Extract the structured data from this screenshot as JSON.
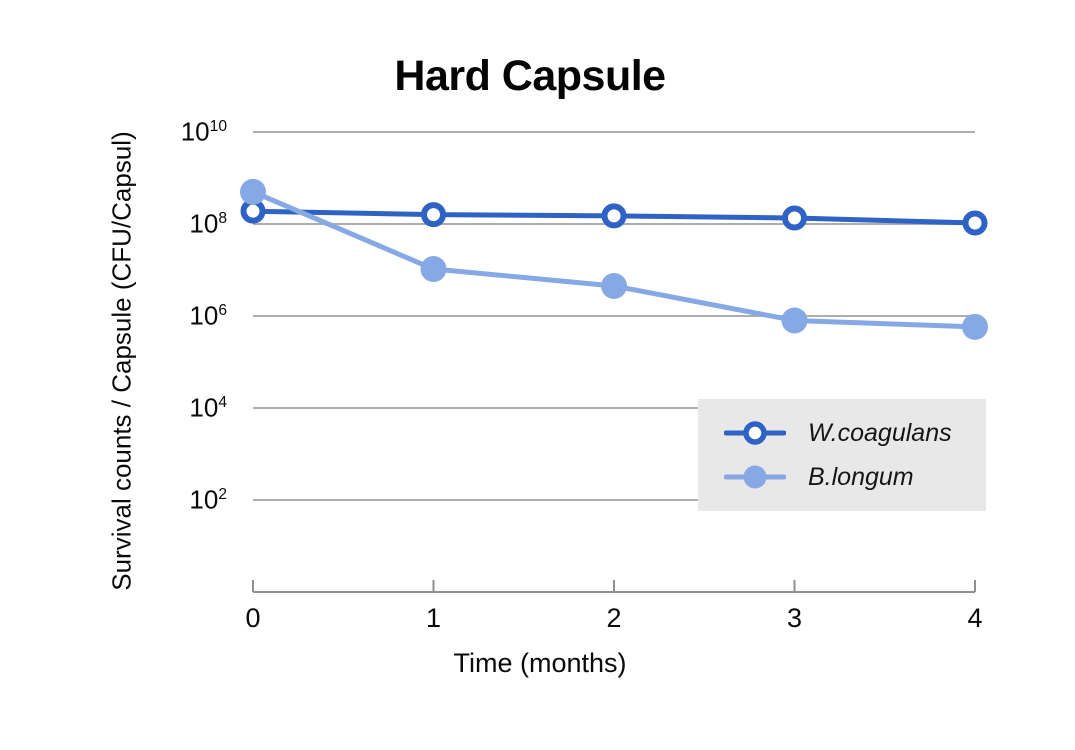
{
  "chart_data": {
    "type": "line",
    "title": "Hard Capsule",
    "xlabel": "Time (months)",
    "ylabel": "Survival counts / Capsule (CFU/Capsul)",
    "x": [
      0,
      1,
      2,
      3,
      4
    ],
    "x_tick_labels": [
      "0",
      "1",
      "2",
      "3",
      "4"
    ],
    "y_scale": "log10",
    "y_tick_exponents": [
      10,
      8,
      6,
      4,
      2
    ],
    "ylim": [
      1,
      10000000000
    ],
    "grid": "horizontal",
    "legend_position": "inside-right",
    "series": [
      {
        "name": "W.coagulans",
        "marker": "open-circle",
        "color": "#2f62c5",
        "values": [
          190000000,
          160000000,
          150000000,
          135000000,
          105000000
        ]
      },
      {
        "name": "B.longum",
        "marker": "filled-circle",
        "color": "#86a9e5",
        "values": [
          500000000,
          10500000,
          4500000,
          800000,
          580000
        ]
      }
    ]
  },
  "colors": {
    "gridline": "#adadad",
    "axis": "#8f8f8f",
    "legend_background": "#e8e8e8",
    "text": "#0a0a0a"
  }
}
